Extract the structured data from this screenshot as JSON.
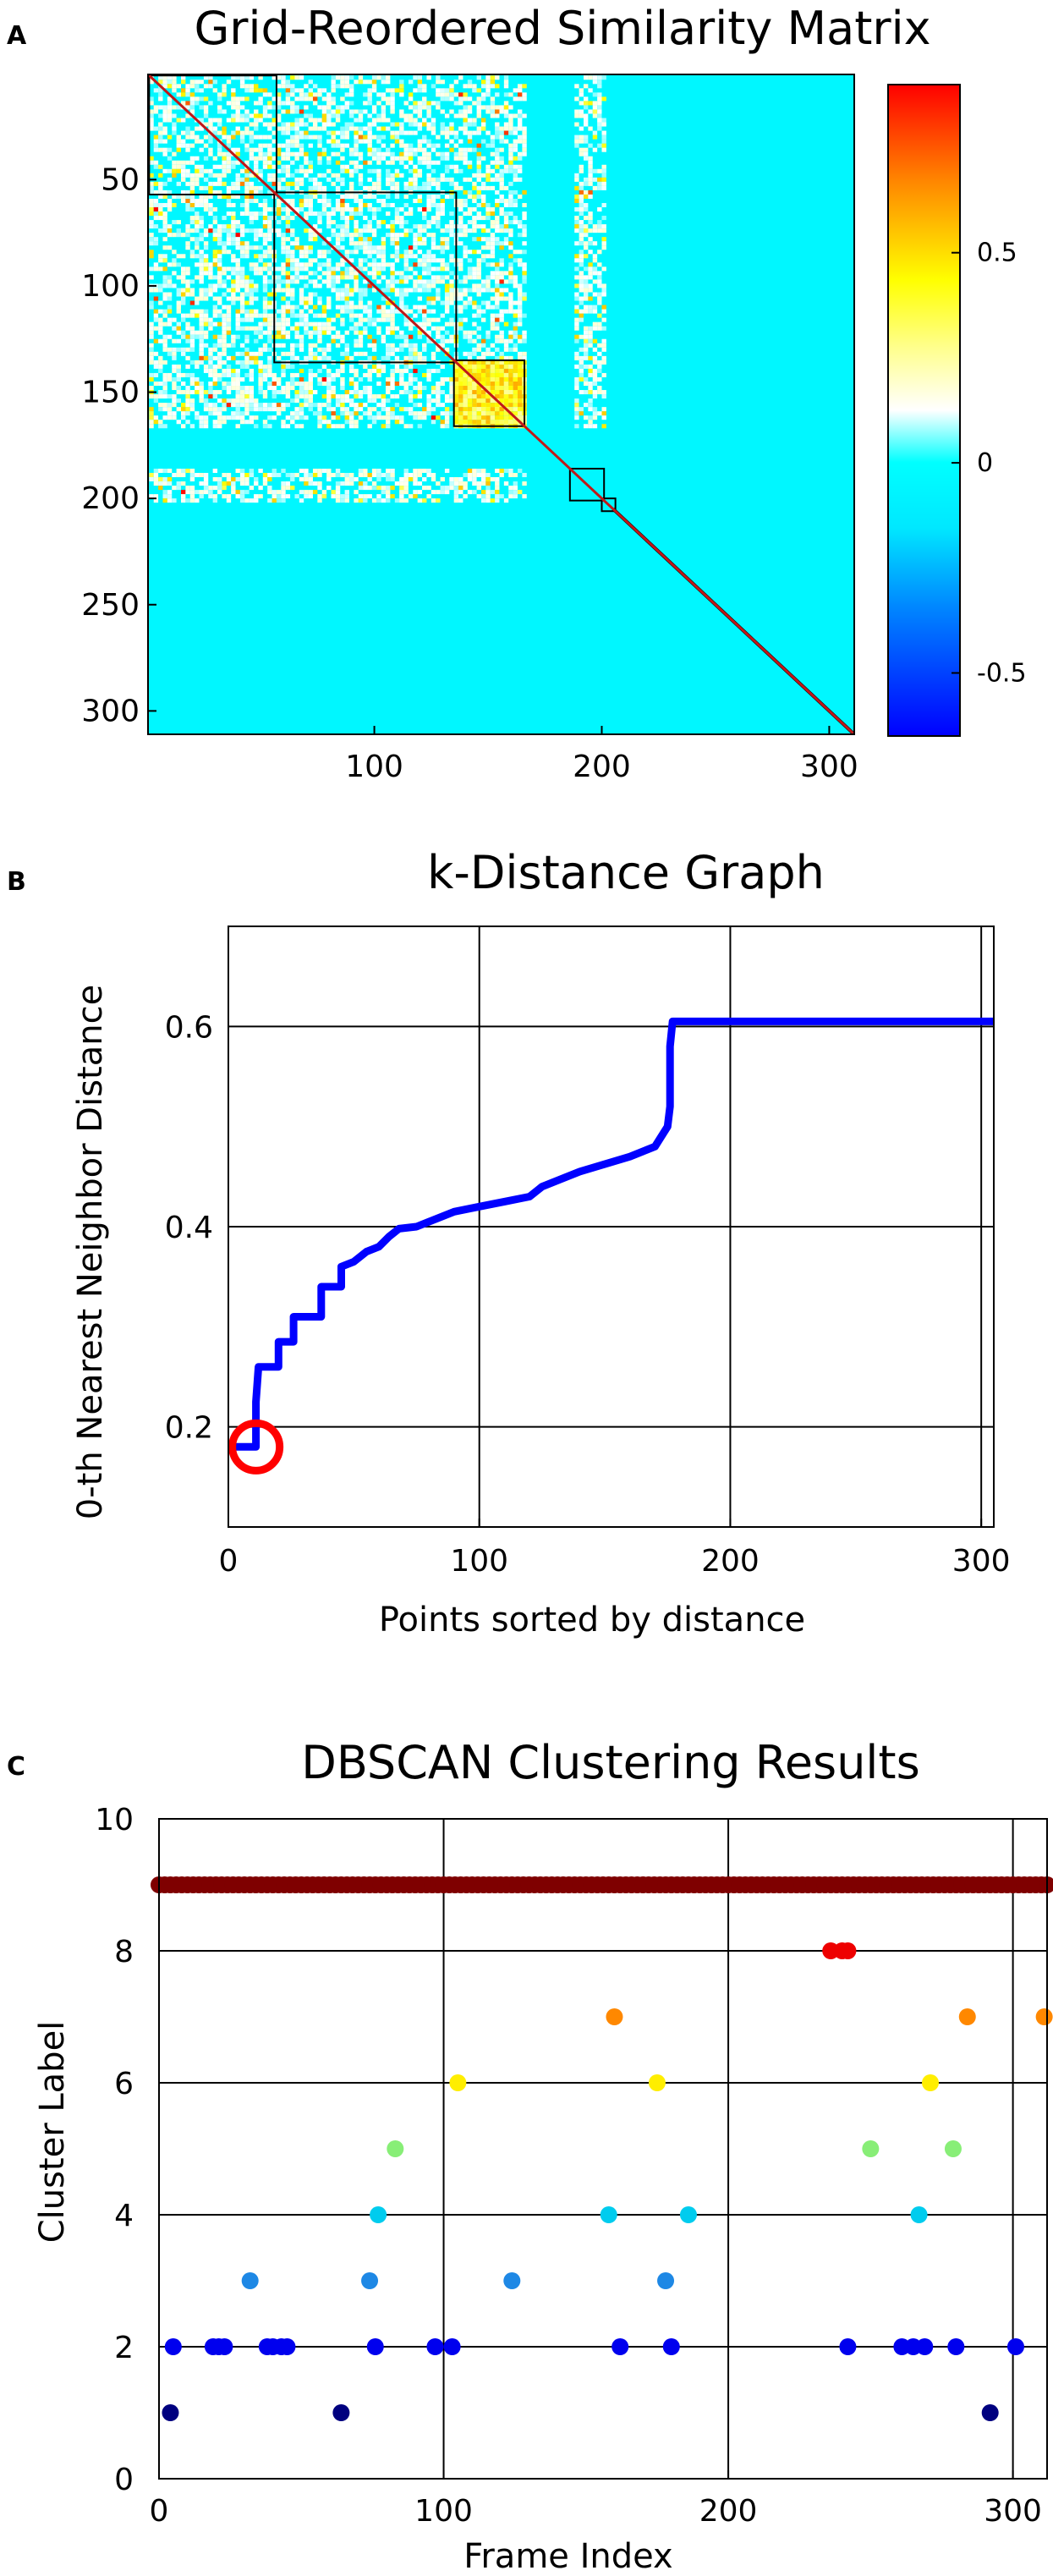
{
  "chart_data": [
    {
      "panel": "A",
      "type": "heatmap",
      "title": "Grid-Reordered Similarity Matrix",
      "xlabel": "",
      "ylabel": "",
      "n": 310,
      "x_ticks": [
        100,
        200,
        300
      ],
      "y_ticks": [
        50,
        100,
        150,
        200,
        250,
        300
      ],
      "colorbar": {
        "range": [
          -0.65,
          0.9
        ],
        "ticks": [
          -0.5,
          0,
          0.5
        ],
        "tick_labels": [
          "-0.5",
          "0",
          "0.5"
        ],
        "colormap": "jet"
      },
      "background_value": -0.15,
      "blocks": [
        {
          "start": 1,
          "end": 56
        },
        {
          "start": 56,
          "end": 135
        },
        {
          "start": 135,
          "end": 165
        },
        {
          "start": 186,
          "end": 200
        },
        {
          "start": 200,
          "end": 205
        }
      ],
      "speckle_regions": [
        {
          "rows": [
            1,
            165
          ],
          "cols": [
            1,
            165
          ]
        },
        {
          "rows": [
            1,
            165
          ],
          "cols": [
            188,
            200
          ]
        },
        {
          "rows": [
            186,
            200
          ],
          "cols": [
            1,
            165
          ]
        }
      ]
    },
    {
      "panel": "B",
      "type": "line",
      "title": "k-Distance Graph",
      "xlabel": "Points sorted by distance",
      "ylabel": "0-th Nearest Neighbor Distance",
      "xlim": [
        0,
        305
      ],
      "ylim": [
        0.1,
        0.7
      ],
      "x_ticks": [
        0,
        100,
        200,
        300
      ],
      "y_ticks": [
        0.2,
        0.4,
        0.6
      ],
      "grid": true,
      "series": [
        {
          "name": "k-distance",
          "color": "#0000ff",
          "x": [
            1,
            11,
            11,
            12,
            20,
            20,
            26,
            26,
            37,
            37,
            45,
            45,
            50,
            55,
            60,
            64,
            68,
            75,
            80,
            90,
            100,
            110,
            120,
            125,
            140,
            160,
            170,
            175,
            176,
            176,
            177,
            305
          ],
          "values": [
            0.18,
            0.18,
            0.225,
            0.26,
            0.26,
            0.285,
            0.285,
            0.31,
            0.31,
            0.34,
            0.34,
            0.36,
            0.365,
            0.375,
            0.38,
            0.39,
            0.398,
            0.4,
            0.405,
            0.415,
            0.42,
            0.425,
            0.43,
            0.44,
            0.455,
            0.47,
            0.48,
            0.5,
            0.52,
            0.58,
            0.605,
            0.605
          ]
        }
      ],
      "annotations": [
        {
          "type": "circle",
          "x": 11,
          "y": 0.18,
          "color": "#ff0000"
        }
      ]
    },
    {
      "panel": "C",
      "type": "scatter",
      "title": "DBSCAN Clustering Results",
      "xlabel": "Frame Index",
      "ylabel": "Cluster Label",
      "xlim": [
        0,
        312
      ],
      "ylim": [
        0,
        10
      ],
      "x_ticks": [
        0,
        100,
        200,
        300
      ],
      "y_ticks": [
        0,
        2,
        4,
        6,
        8,
        10
      ],
      "grid": true,
      "color_map": {
        "1": "#00007f",
        "2": "#0000ee",
        "3": "#1e88e5",
        "4": "#00ccee",
        "5": "#88ee77",
        "6": "#ffee00",
        "7": "#ff8800",
        "8": "#ee0000",
        "9": "#7f0000"
      },
      "points": [
        {
          "label": 1,
          "x": [
            4,
            64,
            292
          ]
        },
        {
          "label": 2,
          "x": [
            5,
            19,
            21,
            23,
            38,
            40,
            43,
            45,
            76,
            97,
            103,
            162,
            180,
            242,
            261,
            265,
            269,
            280,
            301
          ]
        },
        {
          "label": 3,
          "x": [
            32,
            74,
            124,
            178
          ]
        },
        {
          "label": 4,
          "x": [
            77,
            158,
            186,
            267
          ]
        },
        {
          "label": 5,
          "x": [
            83,
            250,
            279
          ]
        },
        {
          "label": 6,
          "x": [
            105,
            175,
            271
          ]
        },
        {
          "label": 7,
          "x": [
            160,
            284,
            311
          ]
        },
        {
          "label": 8,
          "x": [
            236,
            240,
            242
          ]
        },
        {
          "label": 9,
          "x_range": [
            0,
            312
          ],
          "step": 2
        }
      ]
    }
  ]
}
